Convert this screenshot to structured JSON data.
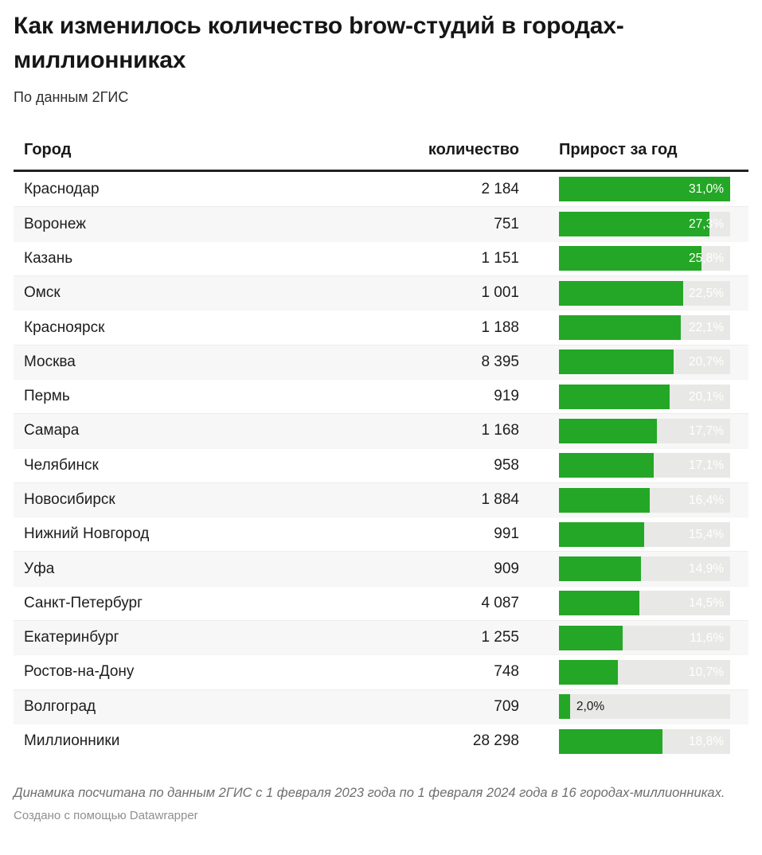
{
  "header": {
    "title": "Как изменилось количество brow-студий в городах-миллионниках",
    "subtitle": "По данным 2ГИС"
  },
  "table": {
    "columns": {
      "city": "Город",
      "count": "количество",
      "growth": "Прирост за год"
    }
  },
  "chart_data": {
    "type": "bar",
    "title": "Как изменилось количество brow-студий в городах-миллионниках",
    "subtitle": "По данным 2ГИС",
    "columns": [
      "Город",
      "количество",
      "Прирост за год"
    ],
    "xmax": 31.0,
    "legend_position": "none",
    "grid": false,
    "rows": [
      {
        "city": "Краснодар",
        "count": "2 184",
        "growth_pct": 31.0,
        "growth_label": "31,0%"
      },
      {
        "city": "Воронеж",
        "count": "751",
        "growth_pct": 27.3,
        "growth_label": "27,3%"
      },
      {
        "city": "Казань",
        "count": "1 151",
        "growth_pct": 25.8,
        "growth_label": "25,8%"
      },
      {
        "city": "Омск",
        "count": "1 001",
        "growth_pct": 22.5,
        "growth_label": "22,5%"
      },
      {
        "city": "Красноярск",
        "count": "1 188",
        "growth_pct": 22.1,
        "growth_label": "22,1%"
      },
      {
        "city": "Москва",
        "count": "8 395",
        "growth_pct": 20.7,
        "growth_label": "20,7%"
      },
      {
        "city": "Пермь",
        "count": "919",
        "growth_pct": 20.1,
        "growth_label": "20,1%"
      },
      {
        "city": "Самара",
        "count": "1 168",
        "growth_pct": 17.7,
        "growth_label": "17,7%"
      },
      {
        "city": "Челябинск",
        "count": "958",
        "growth_pct": 17.1,
        "growth_label": "17,1%"
      },
      {
        "city": "Новосибирск",
        "count": "1 884",
        "growth_pct": 16.4,
        "growth_label": "16,4%"
      },
      {
        "city": "Нижний Новгород",
        "count": "991",
        "growth_pct": 15.4,
        "growth_label": "15,4%"
      },
      {
        "city": "Уфа",
        "count": "909",
        "growth_pct": 14.9,
        "growth_label": "14,9%"
      },
      {
        "city": "Санкт-Петербург",
        "count": "4 087",
        "growth_pct": 14.5,
        "growth_label": "14,5%"
      },
      {
        "city": "Екатеринбург",
        "count": "1 255",
        "growth_pct": 11.6,
        "growth_label": "11,6%"
      },
      {
        "city": "Ростов-на-Дону",
        "count": "748",
        "growth_pct": 10.7,
        "growth_label": "10,7%"
      },
      {
        "city": "Волгоград",
        "count": "709",
        "growth_pct": 2.0,
        "growth_label": "2,0%"
      },
      {
        "city": "Миллионники",
        "count": "28 298",
        "growth_pct": 18.8,
        "growth_label": "18,8%"
      }
    ]
  },
  "footer": {
    "note": "Динамика посчитана по данным 2ГИС с 1 февраля 2023 года по 1 февраля 2024 года в 16 городах-миллионниках.",
    "credit": "Создано с помощью Datawrapper"
  },
  "colors": {
    "bar_green": "#24a726",
    "bar_track": "#e8e8e6",
    "alt_row": "#f7f7f7",
    "header_rule": "#222222",
    "note_gray": "#6e6e6e",
    "credit_gray": "#8f8f8f"
  }
}
